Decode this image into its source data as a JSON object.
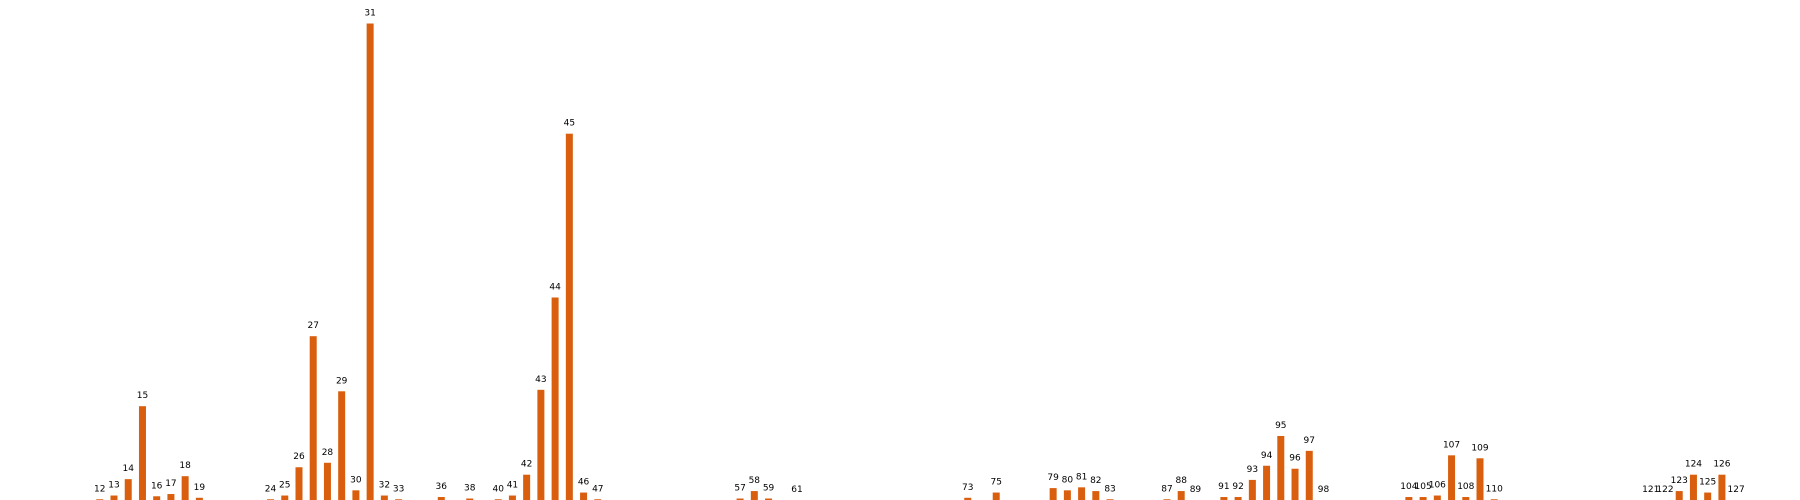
{
  "chart_data": {
    "type": "bar",
    "title": "",
    "xlabel": "",
    "ylabel": "",
    "grid": false,
    "show_axes": false,
    "bar_color": "#d95f0e",
    "ylim": [
      0,
      32
    ],
    "xlim": [
      6,
      129
    ],
    "categories": [
      "12",
      "13",
      "14",
      "15",
      "16",
      "17",
      "18",
      "19",
      "24",
      "25",
      "26",
      "27",
      "28",
      "29",
      "30",
      "31",
      "32",
      "33",
      "36",
      "38",
      "40",
      "41",
      "42",
      "43",
      "44",
      "45",
      "46",
      "47",
      "57",
      "58",
      "59",
      "61",
      "73",
      "75",
      "79",
      "80",
      "81",
      "82",
      "83",
      "87",
      "88",
      "89",
      "91",
      "92",
      "93",
      "94",
      "95",
      "96",
      "97",
      "98",
      "104",
      "105",
      "106",
      "107",
      "108",
      "109",
      "110",
      "121",
      "122",
      "123",
      "124",
      "125",
      "126",
      "127"
    ],
    "series": [
      {
        "values": [
          0.05,
          0.3,
          1.4,
          6.3,
          0.25,
          0.4,
          1.6,
          0.15,
          0.05,
          0.3,
          2.2,
          11.0,
          2.5,
          7.3,
          0.65,
          32.0,
          0.3,
          0.05,
          0.2,
          0.1,
          0.05,
          0.3,
          1.7,
          7.4,
          13.6,
          24.6,
          0.5,
          0.05,
          0.1,
          0.6,
          0.1,
          0.0,
          0.15,
          0.5,
          0.8,
          0.65,
          0.85,
          0.6,
          0.05,
          0.05,
          0.6,
          0.0,
          0.2,
          0.2,
          1.35,
          2.3,
          4.3,
          2.1,
          3.3,
          0.0,
          0.2,
          0.2,
          0.3,
          3.0,
          0.2,
          2.8,
          0.05,
          0.0,
          0.0,
          0.6,
          1.7,
          0.5,
          1.7,
          0.0
        ]
      }
    ]
  }
}
